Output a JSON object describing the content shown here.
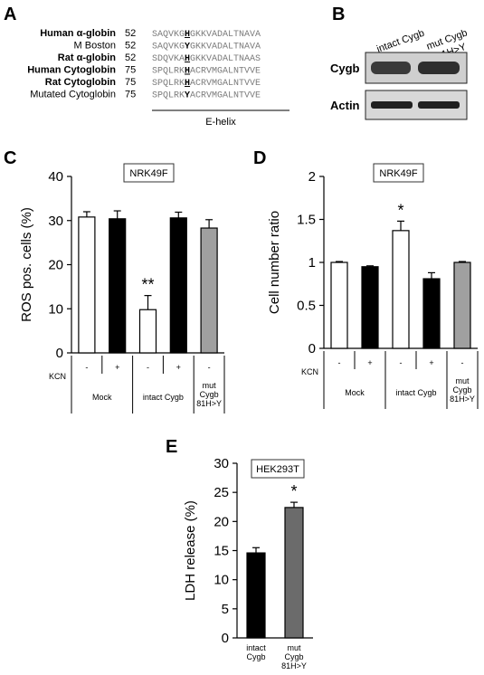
{
  "panels": {
    "a": "A",
    "b": "B",
    "c": "C",
    "d": "D",
    "e": "E"
  },
  "alignment": {
    "rows": [
      {
        "name": "Human α-globin",
        "bold": true,
        "start": "52",
        "pre": "SAQVKG",
        "hl": "H",
        "post": "GKKVADALTNAVA"
      },
      {
        "name": "M Boston",
        "bold": false,
        "start": "52",
        "pre": "SAQVKG",
        "hl": "Y",
        "post": "GKKVADALTNAVA"
      },
      {
        "name": "Rat α-globin",
        "bold": true,
        "start": "52",
        "pre": "SDQVKA",
        "hl": "H",
        "post": "GKKVADALTNAAS"
      },
      {
        "name": "Human Cytoglobin",
        "bold": true,
        "start": "75",
        "pre": "SPQLRK",
        "hl": "H",
        "post": "ACRVMGALNTVVE"
      },
      {
        "name": "Rat Cytoglobin",
        "bold": true,
        "start": "75",
        "pre": "SPQLRK",
        "hl": "H",
        "post": "ACRVMGALNTVVE"
      },
      {
        "name": "Mutated Cytoglobin",
        "bold": false,
        "start": "75",
        "pre": "SPQLRK",
        "hl": "Y",
        "post": "ACRVMGALNTVVE"
      }
    ],
    "helix_label": "E-helix"
  },
  "blot": {
    "lanes": [
      "intact Cygb",
      "mut Cygb",
      "81H>Y"
    ],
    "rows": [
      "Cygb",
      "Actin"
    ]
  },
  "chart_data": [
    {
      "id": "C",
      "type": "bar",
      "cell_line": "NRK49F",
      "ylabel": "ROS pos. cells (%)",
      "ylim": [
        0,
        40
      ],
      "yticks": [
        0,
        10,
        20,
        30,
        40
      ],
      "kcn_label": "KCN",
      "kcn": [
        "-",
        "+",
        "-",
        "+",
        "-"
      ],
      "groups": [
        "Mock",
        "intact Cygb",
        "mut Cygb 81H>Y"
      ],
      "values": [
        30.8,
        30.4,
        9.8,
        30.6,
        28.3
      ],
      "errors": [
        1.2,
        1.8,
        3.2,
        1.3,
        1.9
      ],
      "colors": [
        "#ffffff",
        "#000000",
        "#ffffff",
        "#000000",
        "#a0a0a0"
      ],
      "significance": [
        "",
        "",
        "**",
        "",
        ""
      ]
    },
    {
      "id": "D",
      "type": "bar",
      "cell_line": "NRK49F",
      "ylabel": "Cell number ratio",
      "ylim": [
        0,
        2
      ],
      "yticks": [
        "0",
        "0.5",
        "1",
        "1.5",
        "2"
      ],
      "kcn_label": "KCN",
      "kcn": [
        "-",
        "+",
        "-",
        "+",
        "-"
      ],
      "groups": [
        "Mock",
        "intact Cygb",
        "mut Cygb 81H>Y"
      ],
      "values": [
        1.0,
        0.95,
        1.37,
        0.81,
        1.0
      ],
      "errors": [
        0.01,
        0.01,
        0.11,
        0.07,
        0.01
      ],
      "colors": [
        "#ffffff",
        "#000000",
        "#ffffff",
        "#000000",
        "#a0a0a0"
      ],
      "significance": [
        "",
        "",
        "*",
        "",
        ""
      ]
    },
    {
      "id": "E",
      "type": "bar",
      "cell_line": "HEK293T",
      "ylabel": "LDH release (%)",
      "ylim": [
        0,
        30
      ],
      "yticks": [
        0,
        5,
        10,
        15,
        20,
        25,
        30
      ],
      "categories": [
        "intact Cygb",
        "mut Cygb 81H>Y"
      ],
      "values": [
        14.6,
        22.4
      ],
      "errors": [
        0.9,
        0.9
      ],
      "colors": [
        "#000000",
        "#6b6b6b"
      ],
      "significance": [
        "",
        "*"
      ]
    }
  ]
}
